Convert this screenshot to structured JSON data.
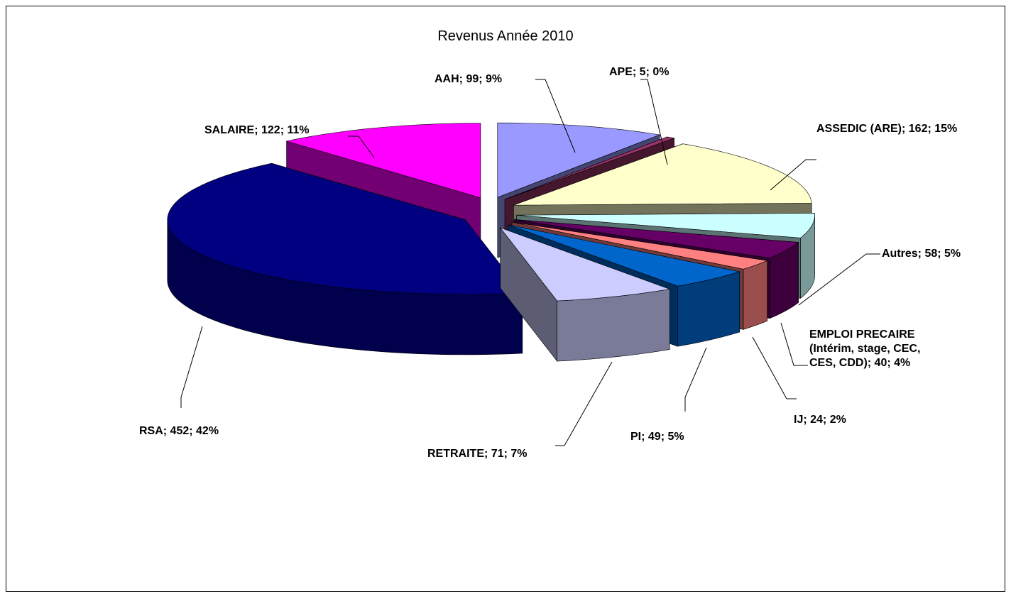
{
  "chart_data": {
    "type": "pie3d",
    "title": "Revenus Année 2010",
    "categories": [
      "AAH",
      "APE",
      "ASSEDIC (ARE)",
      "Autres",
      "EMPLOI PRECAIRE (Intérim, stage, CEC, CES, CDD)",
      "IJ",
      "PI",
      "RETRAITE",
      "RSA",
      "SALAIRE"
    ],
    "values": [
      99,
      5,
      162,
      58,
      40,
      24,
      49,
      71,
      452,
      122
    ],
    "value_labels": [
      "AAH; 99; 9%",
      "APE; 5; 0%",
      "ASSEDIC (ARE); 162; 15%",
      "Autres; 58; 5%",
      "EMPLOI PRECAIRE (Intérim, stage, CEC, CES, CDD); 40; 4%",
      "IJ; 24; 2%",
      "PI; 49; 5%",
      "RETRAITE; 71; 7%",
      "RSA; 452; 42%",
      "SALAIRE; 122; 11%"
    ],
    "colors": [
      "#9999ff",
      "#993366",
      "#ffffcc",
      "#ccffff",
      "#660066",
      "#ff8080",
      "#0066cc",
      "#ccccff",
      "#000080",
      "#ff00ff"
    ]
  }
}
